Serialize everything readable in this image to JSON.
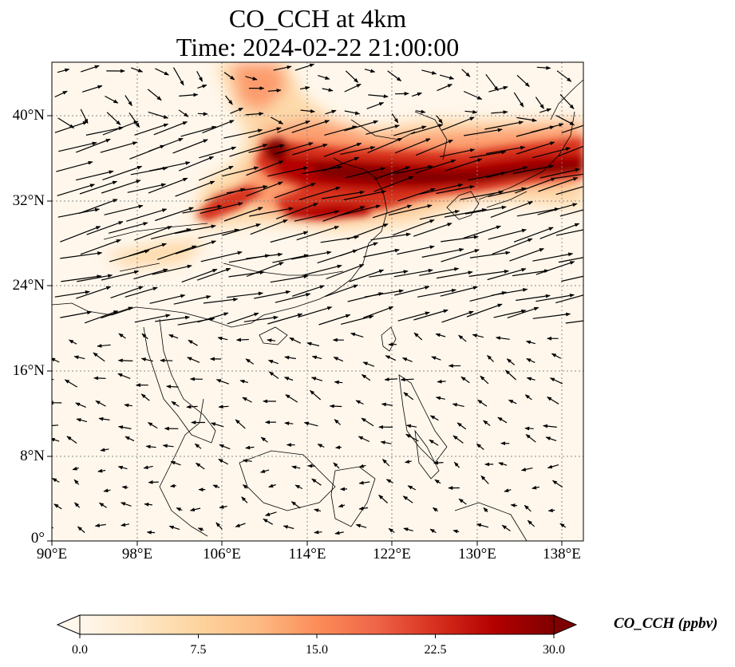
{
  "title": {
    "line1": "CO_CCH at 4km",
    "line2": "Time: 2024-02-22 21:00:00"
  },
  "map": {
    "lon_range": [
      90,
      140
    ],
    "lat_range": [
      0,
      45
    ],
    "x_ticks": [
      "90°E",
      "98°E",
      "106°E",
      "114°E",
      "122°E",
      "130°E",
      "138°E"
    ],
    "y_ticks": [
      "0°",
      "8°N",
      "16°N",
      "24°N",
      "32°N",
      "40°N"
    ],
    "gridlines": true,
    "coastline_color": "#000000",
    "wind_vectors": true
  },
  "colorbar": {
    "label": "CO_CCH (ppbv)",
    "colormap": "OrRd",
    "range": [
      0,
      30
    ],
    "extend": "both",
    "ticks": [
      "0.0",
      "7.5",
      "15.0",
      "22.5",
      "30.0"
    ],
    "stops": [
      "#fff7ec",
      "#fee8c8",
      "#fdd49e",
      "#fdbb84",
      "#fc8d59",
      "#ef6548",
      "#d7301f",
      "#b30000",
      "#7f0000"
    ]
  }
}
